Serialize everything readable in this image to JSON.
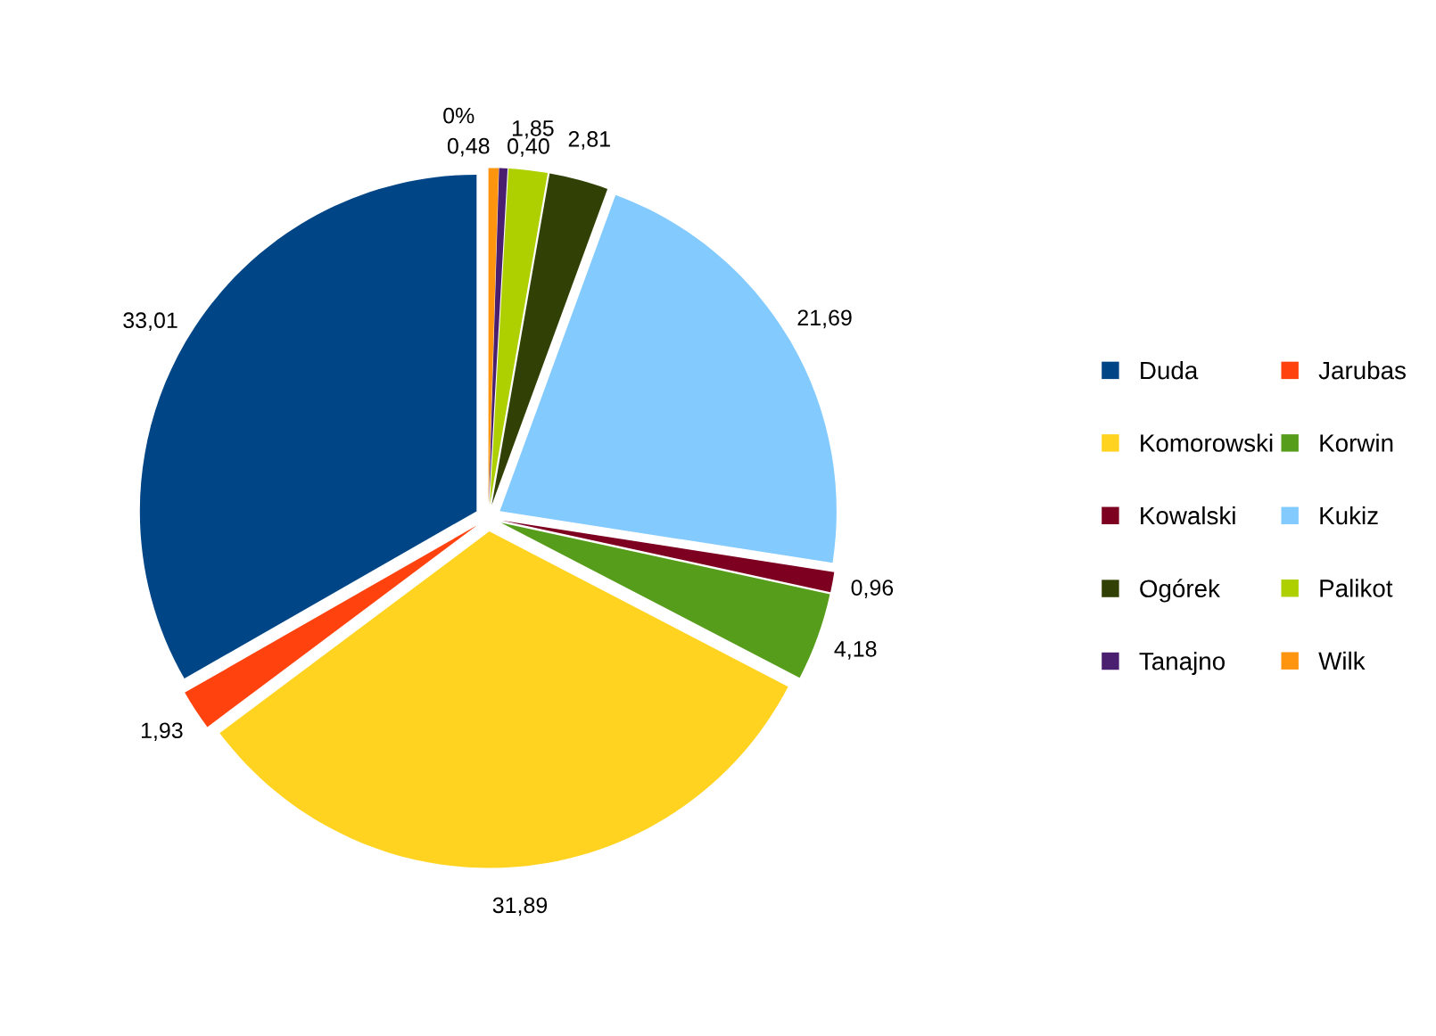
{
  "chart_data": {
    "type": "pie",
    "categories": [
      "Duda",
      "Jarubas",
      "Komorowski",
      "Korwin",
      "Kowalski",
      "Kukiz",
      "Ogórek",
      "Palikot",
      "Tanajno",
      "Wilk"
    ],
    "values": [
      33.01,
      1.93,
      31.89,
      4.18,
      0.96,
      21.69,
      2.81,
      1.85,
      0.4,
      0.48
    ],
    "value_labels": [
      "33,01",
      "1,93",
      "31,89",
      "4,18",
      "0,96",
      "21,69",
      "2,81",
      "1,85",
      "0,40",
      "0,48"
    ],
    "colors": [
      "#004586",
      "#ff420e",
      "#ffd320",
      "#579d1c",
      "#7e0021",
      "#83caff",
      "#314004",
      "#aecf00",
      "#4b1f6f",
      "#ff950e"
    ],
    "annotations": [
      "0%"
    ],
    "legend": "right"
  }
}
